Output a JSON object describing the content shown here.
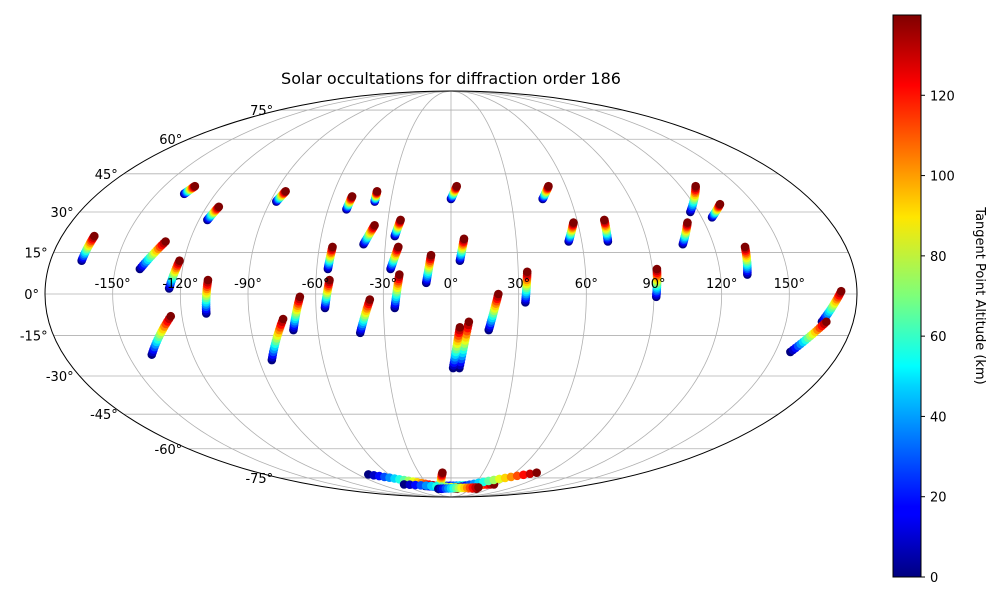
{
  "chart_data": {
    "type": "scatter",
    "projection": "Mollweide",
    "title": "Solar occultations for diffraction order 186",
    "grid": true,
    "x_tick_labels": [
      "-150°",
      "-120°",
      "-90°",
      "-60°",
      "-30°",
      "0°",
      "30°",
      "60°",
      "90°",
      "120°",
      "150°"
    ],
    "x_tick_values": [
      -150,
      -120,
      -90,
      -60,
      -30,
      0,
      30,
      60,
      90,
      120,
      150
    ],
    "y_tick_labels": [
      "-75°",
      "-60°",
      "-45°",
      "-30°",
      "-15°",
      "0°",
      "15°",
      "30°",
      "45°",
      "60°",
      "75°"
    ],
    "y_tick_values": [
      -75,
      -60,
      -45,
      -30,
      -15,
      0,
      15,
      30,
      45,
      60,
      75
    ],
    "colorbar": {
      "label": "Tangent Point Altitude (km)",
      "colormap": "jet",
      "range": [
        0,
        140
      ],
      "tick_labels": [
        "0",
        "20",
        "40",
        "60",
        "80",
        "100",
        "120"
      ],
      "tick_values": [
        0,
        20,
        40,
        60,
        80,
        100,
        120
      ]
    },
    "tracks": [
      {
        "lon": [
          -166,
          -165
        ],
        "lat": [
          12,
          21
        ]
      },
      {
        "lon": [
          -136,
          -134
        ],
        "lat": [
          37,
          40
        ]
      },
      {
        "lon": [
          -139,
          -131
        ],
        "lat": [
          9,
          19
        ]
      },
      {
        "lon": [
          -116,
          -114
        ],
        "lat": [
          27,
          32
        ]
      },
      {
        "lon": [
          -125,
          -122
        ],
        "lat": [
          2,
          12
        ]
      },
      {
        "lon": [
          -109,
          -108
        ],
        "lat": [
          -7,
          5
        ]
      },
      {
        "lon": [
          -87,
          -85
        ],
        "lat": [
          34,
          38
        ]
      },
      {
        "lon": [
          -51,
          -50
        ],
        "lat": [
          31,
          36
        ]
      },
      {
        "lon": [
          -38,
          -38
        ],
        "lat": [
          34,
          38
        ]
      },
      {
        "lon": [
          -55,
          -54
        ],
        "lat": [
          9,
          17
        ]
      },
      {
        "lon": [
          -40,
          -36
        ],
        "lat": [
          18,
          25
        ]
      },
      {
        "lon": [
          -26,
          -24
        ],
        "lat": [
          21,
          27
        ]
      },
      {
        "lon": [
          -27,
          -24
        ],
        "lat": [
          9,
          17
        ]
      },
      {
        "lon": [
          -11,
          -9
        ],
        "lat": [
          4,
          14
        ]
      },
      {
        "lon": [
          4,
          6
        ],
        "lat": [
          12,
          20
        ]
      },
      {
        "lon": [
          0,
          3
        ],
        "lat": [
          35,
          40
        ]
      },
      {
        "lon": [
          -56,
          -54
        ],
        "lat": [
          -5,
          5
        ]
      },
      {
        "lon": [
          -71,
          -67
        ],
        "lat": [
          -13,
          -1
        ]
      },
      {
        "lon": [
          -41,
          -36
        ],
        "lat": [
          -14,
          -2
        ]
      },
      {
        "lon": [
          -25,
          -23
        ],
        "lat": [
          -5,
          7
        ]
      },
      {
        "lon": [
          -84,
          -75
        ],
        "lat": [
          -24,
          -9
        ]
      },
      {
        "lon": [
          -139,
          -125
        ],
        "lat": [
          -22,
          -8
        ]
      },
      {
        "lon": [
          4,
          8
        ],
        "lat": [
          -27,
          -10
        ]
      },
      {
        "lon": [
          1,
          4
        ],
        "lat": [
          -27,
          -12
        ]
      },
      {
        "lon": [
          17,
          21
        ],
        "lat": [
          -13,
          0
        ]
      },
      {
        "lon": [
          33,
          34
        ],
        "lat": [
          -3,
          8
        ]
      },
      {
        "lon": [
          46,
          51
        ],
        "lat": [
          35,
          40
        ]
      },
      {
        "lon": [
          54,
          58
        ],
        "lat": [
          19,
          26
        ]
      },
      {
        "lon": [
          72,
          73
        ],
        "lat": [
          19,
          27
        ]
      },
      {
        "lon": [
          91,
          92
        ],
        "lat": [
          -1,
          9
        ]
      },
      {
        "lon": [
          106,
          112
        ],
        "lat": [
          18,
          26
        ]
      },
      {
        "lon": [
          116,
          128
        ],
        "lat": [
          30,
          40
        ]
      },
      {
        "lon": [
          125,
          133
        ],
        "lat": [
          28,
          33
        ]
      },
      {
        "lon": [
          132,
          134
        ],
        "lat": [
          7,
          17
        ]
      },
      {
        "lon": [
          166,
          173
        ],
        "lat": [
          -10,
          1
        ]
      },
      {
        "lon": [
          157,
          168
        ],
        "lat": [
          -21,
          -10
        ]
      },
      {
        "lon": [
          -80,
          -20
        ],
        "lat": [
          -73,
          -80
        ]
      },
      {
        "lon": [
          -35,
          10
        ],
        "lat": [
          -80,
          -82
        ]
      },
      {
        "lon": [
          -10,
          55
        ],
        "lat": [
          -80,
          -79
        ]
      },
      {
        "lon": [
          10,
          80
        ],
        "lat": [
          -81,
          -72
        ]
      },
      {
        "lon": [
          -15,
          -8
        ],
        "lat": [
          -82,
          -72
        ]
      },
      {
        "lon": [
          -60,
          40
        ],
        "lat": [
          -79,
          -82
        ]
      },
      {
        "lon": [
          -20,
          40
        ],
        "lat": [
          -82,
          -81
        ]
      }
    ]
  }
}
